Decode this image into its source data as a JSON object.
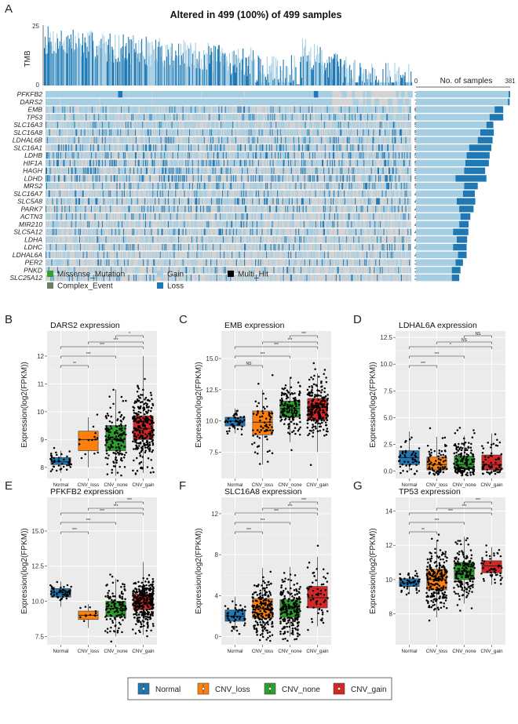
{
  "oncoplot": {
    "panel_label": "A",
    "title": "Altered in 499 (100%) of 499 samples",
    "tmb_label": "TMB",
    "tmb_ticks": [
      "25",
      "0"
    ],
    "bar_axis_label": "No. of samples",
    "bar_axis_ticks": [
      "0",
      "381"
    ],
    "genes": [
      "PFKFB2",
      "DARS2",
      "EMB",
      "TP53",
      "SLC16A3",
      "SLC16A8",
      "LDHAL6B",
      "SLC16A1",
      "LDHB",
      "HIF1A",
      "HAGH",
      "LDHD",
      "MRS2",
      "SLC16A7",
      "SLC5A8",
      "PARK7",
      "ACTN3",
      "MIR210",
      "SLC5A12",
      "LDHA",
      "LDHC",
      "LDHAL6A",
      "PER2",
      "PNKD",
      "SLC25A12"
    ],
    "percents": [
      "76%",
      "75%",
      "65%",
      "62%",
      "58%",
      "58%",
      "57%",
      "55%",
      "54%",
      "54%",
      "52%",
      "52%",
      "50%",
      "48%",
      "48%",
      "47%",
      "44%",
      "43%",
      "42%",
      "42%",
      "42%",
      "41%",
      "39%",
      "36%",
      "36%"
    ],
    "gain_counts": [
      375,
      372,
      318,
      298,
      285,
      260,
      250,
      215,
      205,
      200,
      195,
      160,
      195,
      190,
      165,
      175,
      180,
      175,
      150,
      165,
      150,
      170,
      160,
      145,
      145
    ],
    "loss_counts": [
      6,
      7,
      35,
      55,
      28,
      55,
      60,
      90,
      93,
      95,
      85,
      125,
      55,
      48,
      75,
      58,
      40,
      38,
      62,
      42,
      55,
      35,
      30,
      35,
      30
    ],
    "colors": {
      "gain": "#a6cee3",
      "loss": "#1f78b4",
      "missense": "#33a02c",
      "complex": "#6e7f60",
      "multi_hit": "#000000",
      "bg": "#d3d3d3"
    },
    "legend": [
      {
        "label": "Missense_Mutation",
        "color": "#33a02c"
      },
      {
        "label": "Gain",
        "color": "#a6cee3"
      },
      {
        "label": "Multi_Hit",
        "color": "#000000"
      },
      {
        "label": "Complex_Event",
        "color": "#6e7f60"
      },
      {
        "label": "Loss",
        "color": "#1f78b4"
      }
    ]
  },
  "boxplot_common": {
    "ylabel": "Expression(log2(FPKM))",
    "categories": [
      "Normal",
      "CNV_loss",
      "CNV_none",
      "CNV_gain"
    ],
    "colors": [
      "#1f77b4",
      "#ff7f0e",
      "#2ca02c",
      "#d62728"
    ],
    "legend_labels": [
      "Normal",
      "CNV_loss",
      "CNV_none",
      "CNV_gain"
    ]
  },
  "chart_data": [
    {
      "type": "box",
      "panel": "B",
      "title": "DARS2 expression",
      "ylim": [
        7.6,
        12.9
      ],
      "yticks": [
        8,
        9,
        10,
        11,
        12
      ],
      "median": [
        8.2,
        9.0,
        9.0,
        9.4
      ],
      "q1": [
        8.1,
        8.6,
        8.6,
        9.0
      ],
      "q3": [
        8.35,
        9.3,
        9.5,
        9.85
      ],
      "wlo": [
        7.8,
        8.0,
        7.7,
        7.8
      ],
      "whi": [
        8.6,
        9.8,
        10.8,
        12.0
      ],
      "n": [
        45,
        14,
        150,
        260
      ],
      "spread": [
        0.2,
        0.5,
        0.65,
        0.7
      ],
      "comparisons": [
        {
          "pair": [
            0,
            1
          ],
          "label": "**"
        },
        {
          "pair": [
            0,
            2
          ],
          "label": "***"
        },
        {
          "pair": [
            0,
            3
          ],
          "label": "***"
        },
        {
          "pair": [
            1,
            3
          ],
          "label": "***"
        },
        {
          "pair": [
            2,
            3
          ],
          "label": "*"
        }
      ]
    },
    {
      "type": "box",
      "panel": "C",
      "title": "EMB expression",
      "ylim": [
        5.4,
        17.2
      ],
      "yticks": [
        7.5,
        10.0,
        12.5,
        15.0
      ],
      "median": [
        10.0,
        9.9,
        11.0,
        11.1
      ],
      "q1": [
        9.6,
        8.9,
        10.3,
        10.1
      ],
      "q3": [
        10.3,
        10.8,
        11.6,
        11.8
      ],
      "wlo": [
        9.0,
        6.5,
        8.3,
        7.5
      ],
      "whi": [
        11.0,
        12.5,
        13.5,
        13.8
      ],
      "n": [
        45,
        70,
        150,
        220
      ],
      "spread": [
        0.45,
        1.3,
        1.0,
        1.2
      ],
      "comparisons": [
        {
          "pair": [
            0,
            1
          ],
          "label": "NS"
        },
        {
          "pair": [
            0,
            2
          ],
          "label": "***"
        },
        {
          "pair": [
            0,
            3
          ],
          "label": "***"
        },
        {
          "pair": [
            1,
            3
          ],
          "label": "***"
        },
        {
          "pair": [
            2,
            3
          ],
          "label": "***"
        }
      ]
    },
    {
      "type": "box",
      "panel": "D",
      "title": "LDHAL6A expression",
      "ylim": [
        -0.7,
        13.1
      ],
      "yticks": [
        0.0,
        2.5,
        5.0,
        7.5,
        10.0,
        12.5
      ],
      "median": [
        1.25,
        0.6,
        0.6,
        0.6
      ],
      "q1": [
        0.6,
        0.1,
        0.2,
        0.1
      ],
      "q3": [
        1.9,
        1.3,
        1.4,
        1.5
      ],
      "wlo": [
        0.0,
        0.0,
        0.0,
        0.0
      ],
      "whi": [
        3.7,
        3.2,
        3.3,
        3.5
      ],
      "n": [
        45,
        80,
        160,
        65
      ],
      "spread": [
        1.0,
        1.2,
        1.4,
        1.3
      ],
      "comparisons": [
        {
          "pair": [
            0,
            1
          ],
          "label": "***"
        },
        {
          "pair": [
            0,
            2
          ],
          "label": "***"
        },
        {
          "pair": [
            0,
            3
          ],
          "label": "*"
        },
        {
          "pair": [
            1,
            3
          ],
          "label": "NS"
        },
        {
          "pair": [
            2,
            3
          ],
          "label": "NS"
        }
      ]
    },
    {
      "type": "box",
      "panel": "E",
      "title": "PFKFB2 expression",
      "ylim": [
        6.9,
        17.4
      ],
      "yticks": [
        7.5,
        10.0,
        12.5,
        15.0
      ],
      "median": [
        10.6,
        9.0,
        9.5,
        9.9
      ],
      "q1": [
        10.3,
        8.7,
        8.9,
        9.4
      ],
      "q3": [
        10.9,
        9.3,
        10.0,
        10.5
      ],
      "wlo": [
        9.6,
        8.1,
        7.5,
        7.6
      ],
      "whi": [
        11.4,
        9.8,
        11.6,
        12.8
      ],
      "n": [
        45,
        12,
        120,
        320
      ],
      "spread": [
        0.4,
        0.35,
        0.9,
        0.8
      ],
      "comparisons": [
        {
          "pair": [
            0,
            1
          ],
          "label": "***"
        },
        {
          "pair": [
            0,
            2
          ],
          "label": "***"
        },
        {
          "pair": [
            0,
            3
          ],
          "label": "***"
        },
        {
          "pair": [
            1,
            3
          ],
          "label": "***"
        },
        {
          "pair": [
            2,
            3
          ],
          "label": "***"
        }
      ]
    },
    {
      "type": "box",
      "panel": "F",
      "title": "SLC16A8 expression",
      "ylim": [
        -0.8,
        13.6
      ],
      "yticks": [
        0,
        4,
        8,
        12
      ],
      "median": [
        2.0,
        2.7,
        2.7,
        3.8
      ],
      "q1": [
        1.5,
        1.8,
        1.9,
        2.8
      ],
      "q3": [
        2.6,
        3.7,
        3.6,
        4.9
      ],
      "wlo": [
        0.6,
        0.0,
        0.0,
        1.0
      ],
      "whi": [
        3.9,
        6.7,
        6.8,
        7.8
      ],
      "n": [
        45,
        210,
        210,
        60
      ],
      "spread": [
        0.7,
        1.6,
        1.5,
        1.6
      ],
      "comparisons": [
        {
          "pair": [
            0,
            1
          ],
          "label": "***"
        },
        {
          "pair": [
            0,
            2
          ],
          "label": "***"
        },
        {
          "pair": [
            0,
            3
          ],
          "label": "***"
        },
        {
          "pair": [
            1,
            3
          ],
          "label": "***"
        },
        {
          "pair": [
            2,
            3
          ],
          "label": "***"
        }
      ]
    },
    {
      "type": "box",
      "panel": "G",
      "title": "TP53 expression",
      "ylim": [
        6.2,
        14.8
      ],
      "yticks": [
        8,
        10,
        12,
        14
      ],
      "median": [
        9.8,
        10.0,
        10.5,
        10.8
      ],
      "q1": [
        9.6,
        9.4,
        10.0,
        10.4
      ],
      "q3": [
        10.05,
        10.6,
        11.0,
        11.1
      ],
      "wlo": [
        9.2,
        7.8,
        8.6,
        9.7
      ],
      "whi": [
        10.4,
        12.3,
        12.5,
        11.9
      ],
      "n": [
        45,
        230,
        170,
        50
      ],
      "spread": [
        0.3,
        0.9,
        0.75,
        0.6
      ],
      "comparisons": [
        {
          "pair": [
            0,
            1
          ],
          "label": "**"
        },
        {
          "pair": [
            0,
            2
          ],
          "label": "***"
        },
        {
          "pair": [
            0,
            3
          ],
          "label": "***"
        },
        {
          "pair": [
            1,
            3
          ],
          "label": "***"
        },
        {
          "pair": [
            2,
            3
          ],
          "label": "***"
        }
      ]
    }
  ]
}
